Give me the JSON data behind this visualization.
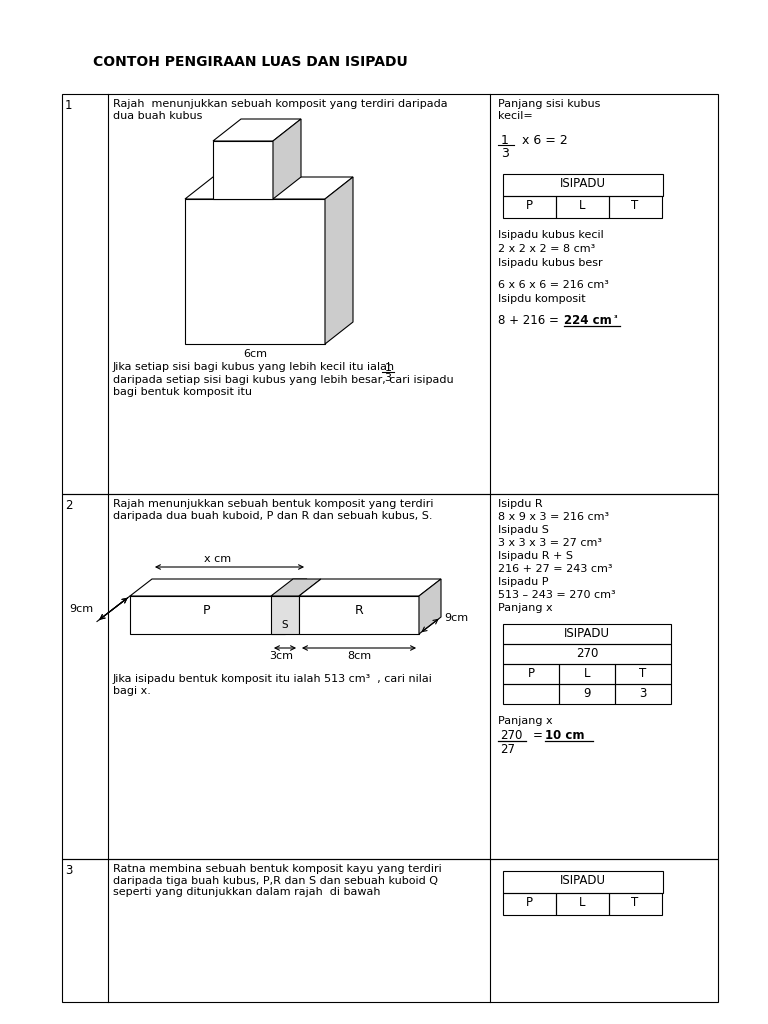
{
  "title": "CONTOH PENGIRAAN LUAS DAN ISIPADU",
  "bg_color": "#ffffff",
  "section1": {
    "num": "1",
    "question_text": "Rajah  menunjukkan sebuah komposit yang terdiri daripada\ndua buah kubus",
    "fraction_text": "Jika setiap sisi bagi kubus yang lebih kecil itu ialah",
    "fraction_cont": "daripada setiap sisi bagi kubus yang lebih besar, cari isipadu\nbagi bentuk komposit itu",
    "answer_text1": "Panjang sisi kubus\nkecil=",
    "isipadu_label": "ISIPADU",
    "plt_header": [
      "P",
      "L",
      "T"
    ],
    "calc1": "Isipadu kubus kecil",
    "calc2": "2 x 2 x 2 = 8 cm³",
    "calc3": "Isipadu kubus besr",
    "calc4": "6 x 6 x 6 = 216 cm³",
    "calc5": "Isipdu komposit"
  },
  "section2": {
    "num": "2",
    "question_text": "Rajah menunjukkan sebuah bentuk komposit yang terdiri\ndaripada dua buah kuboid, P dan R dan sebuah kubus, S.",
    "question2": "Jika isipadu bentuk komposit itu ialah 513 cm³  , cari nilai\nbagi x.",
    "ans1": "Isipdu R",
    "ans2": "8 x 9 x 3 = 216 cm³",
    "ans3": "Isipadu S",
    "ans4": "3 x 3 x 3 = 27 cm³",
    "ans5": "Isipadu R + S",
    "ans6": "216 + 27 = 243 cm³",
    "ans7": "Isipadu P",
    "ans8": "513 – 243 = 270 cm³",
    "ans9": "Panjang x",
    "isipadu_label": "ISIPADU",
    "isipadu_value": "270",
    "plt_header": [
      "P",
      "L",
      "T"
    ],
    "plt_L": "9",
    "plt_T": "3"
  },
  "section3": {
    "num": "3",
    "question_text": "Ratna membina sebuah bentuk komposit kayu yang terdiri\ndaripada tiga buah kubus, P,R dan S dan sebuah kuboid Q\nseperti yang ditunjukkan dalam rajah  di bawah",
    "isipadu_label": "ISIPADU",
    "plt_header": [
      "P",
      "L",
      "T"
    ]
  }
}
